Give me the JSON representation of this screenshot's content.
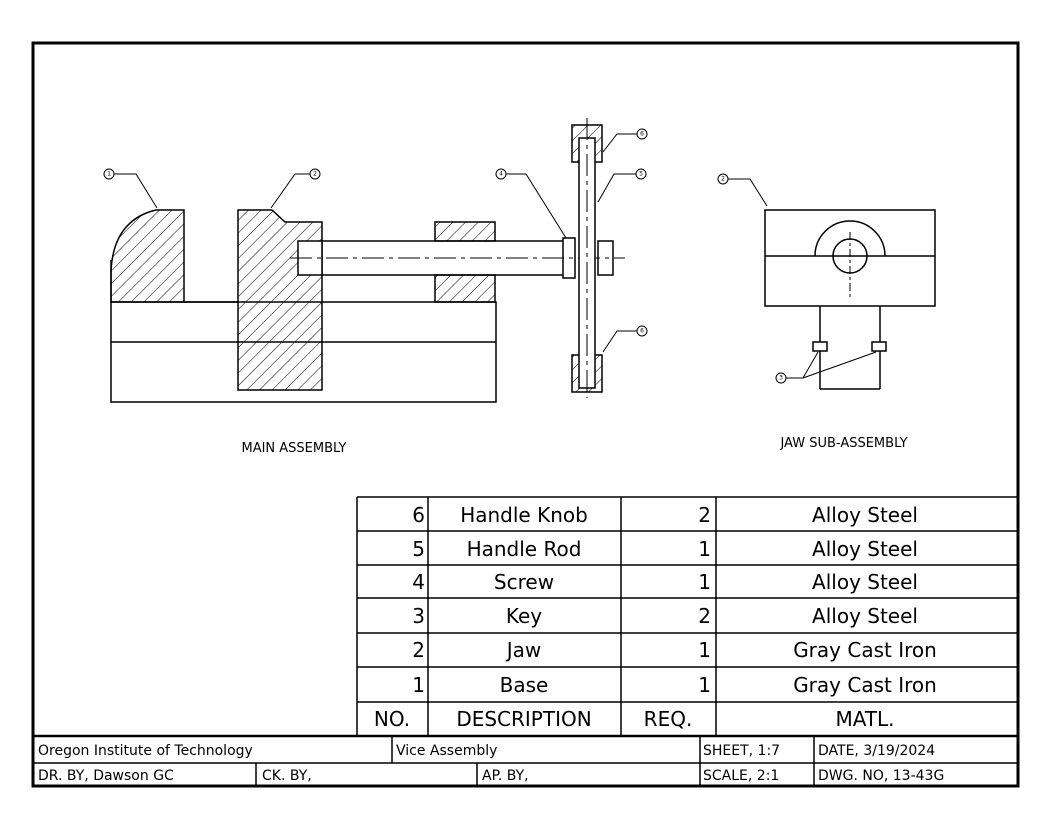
{
  "views": {
    "main_title": "MAIN ASSEMBLY",
    "jaw_title": "JAW SUB-ASSEMBLY"
  },
  "balloons": {
    "b1": "1",
    "b2": "2",
    "b3": "3",
    "b4": "4",
    "b5": "5",
    "b6_top": "6",
    "b6_bottom": "6",
    "b2_jaw": "2"
  },
  "parts_list": {
    "rows": [
      {
        "no": "6",
        "description": "Handle Knob",
        "req": "2",
        "matl": "Alloy Steel"
      },
      {
        "no": "5",
        "description": "Handle Rod",
        "req": "1",
        "matl": "Alloy Steel"
      },
      {
        "no": "4",
        "description": "Screw",
        "req": "1",
        "matl": "Alloy Steel"
      },
      {
        "no": "3",
        "description": "Key",
        "req": "2",
        "matl": "Alloy Steel"
      },
      {
        "no": "2",
        "description": "Jaw",
        "req": "1",
        "matl": "Gray Cast Iron"
      },
      {
        "no": "1",
        "description": "Base",
        "req": "1",
        "matl": "Gray Cast Iron"
      }
    ],
    "header": {
      "no": "NO.",
      "description": "DESCRIPTION",
      "req": "REQ.",
      "matl": "MATL."
    }
  },
  "title_block": {
    "school": "Oregon Institute of Technology",
    "title": "Vice Assembly",
    "sheet": "SHEET, 1:7",
    "date": "DATE, 3/19/2024",
    "drawn_by": "DR. BY, Dawson GC",
    "checked_by": "CK. BY,",
    "approved_by": "AP. BY,",
    "scale": "SCALE, 2:1",
    "dwg_no": "DWG. NO, 13-43G"
  }
}
